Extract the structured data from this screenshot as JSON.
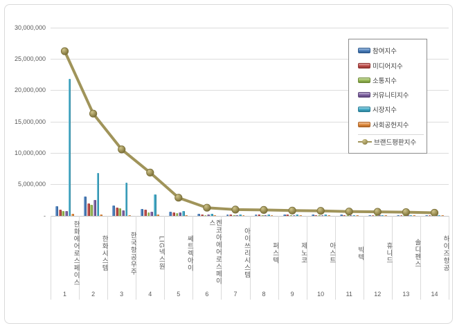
{
  "chart_data": {
    "type": "bar",
    "subtype": "grouped-bars-with-line-overlay",
    "title": "",
    "xlabel": "",
    "ylabel": "",
    "grid": "horizontal",
    "categories": [
      "한화에어로스페이스",
      "한화시스템",
      "한국항공우주",
      "LIG넥스원",
      "쎄트렉아이",
      "켄코아에어로스페이스",
      "아이쓰리시스템",
      "퍼스텍",
      "제노코",
      "아스트",
      "빅텍",
      "휴니드",
      "솔디펜스",
      "하이즈항공"
    ],
    "ranks": [
      "1",
      "2",
      "3",
      "4",
      "5",
      "6",
      "7",
      "8",
      "9",
      "10",
      "11",
      "12",
      "13",
      "14"
    ],
    "series": [
      {
        "name": "참여지수",
        "type": "bar",
        "color": "#4a7ebb",
        "edge": "#2f5b8f",
        "values": [
          1550000,
          3050000,
          1700000,
          1100000,
          650000,
          300000,
          250000,
          250000,
          200000,
          200000,
          180000,
          160000,
          150000,
          120000
        ]
      },
      {
        "name": "미디어지수",
        "type": "bar",
        "color": "#be4b48",
        "edge": "#8f3532",
        "values": [
          1000000,
          1950000,
          1350000,
          1000000,
          500000,
          250000,
          200000,
          200000,
          180000,
          150000,
          140000,
          130000,
          120000,
          100000
        ]
      },
      {
        "name": "소통지수",
        "type": "bar",
        "color": "#98b954",
        "edge": "#6f8c38",
        "values": [
          750000,
          1750000,
          1200000,
          500000,
          400000,
          150000,
          100000,
          100000,
          100000,
          100000,
          80000,
          80000,
          70000,
          60000
        ]
      },
      {
        "name": "커뮤니티지수",
        "type": "bar",
        "color": "#7d60a0",
        "edge": "#5b4478",
        "values": [
          800000,
          2500000,
          900000,
          700000,
          500000,
          200000,
          150000,
          120000,
          120000,
          100000,
          100000,
          90000,
          90000,
          70000
        ]
      },
      {
        "name": "시장지수",
        "type": "bar",
        "color": "#3fa8c6",
        "edge": "#2b7e96",
        "values": [
          21850000,
          6850000,
          5300000,
          3400000,
          750000,
          350000,
          250000,
          230000,
          200000,
          200000,
          160000,
          150000,
          130000,
          120000
        ]
      },
      {
        "name": "사회공헌지수",
        "type": "bar",
        "color": "#e08a3c",
        "edge": "#ad6426",
        "values": [
          300000,
          200000,
          150000,
          200000,
          100000,
          50000,
          50000,
          50000,
          50000,
          50000,
          40000,
          40000,
          40000,
          30000
        ]
      },
      {
        "name": "브랜드평판지수",
        "type": "line",
        "color": "#a0945a",
        "edge": "#776c35",
        "values": [
          26250000,
          16300000,
          10600000,
          6900000,
          2900000,
          1300000,
          1000000,
          950000,
          850000,
          800000,
          700000,
          650000,
          600000,
          500000
        ]
      }
    ],
    "y_axis": {
      "min": 0,
      "max": 30000000,
      "step": 5000000,
      "tick_labels": [
        "30,000,000",
        "25,000,000",
        "20,000,000",
        "15,000,000",
        "10,000,000",
        "5,000,000",
        "-"
      ],
      "tick_values": [
        30000000,
        25000000,
        20000000,
        15000000,
        10000000,
        5000000,
        0
      ]
    },
    "legend": {
      "position": "top-right"
    }
  }
}
